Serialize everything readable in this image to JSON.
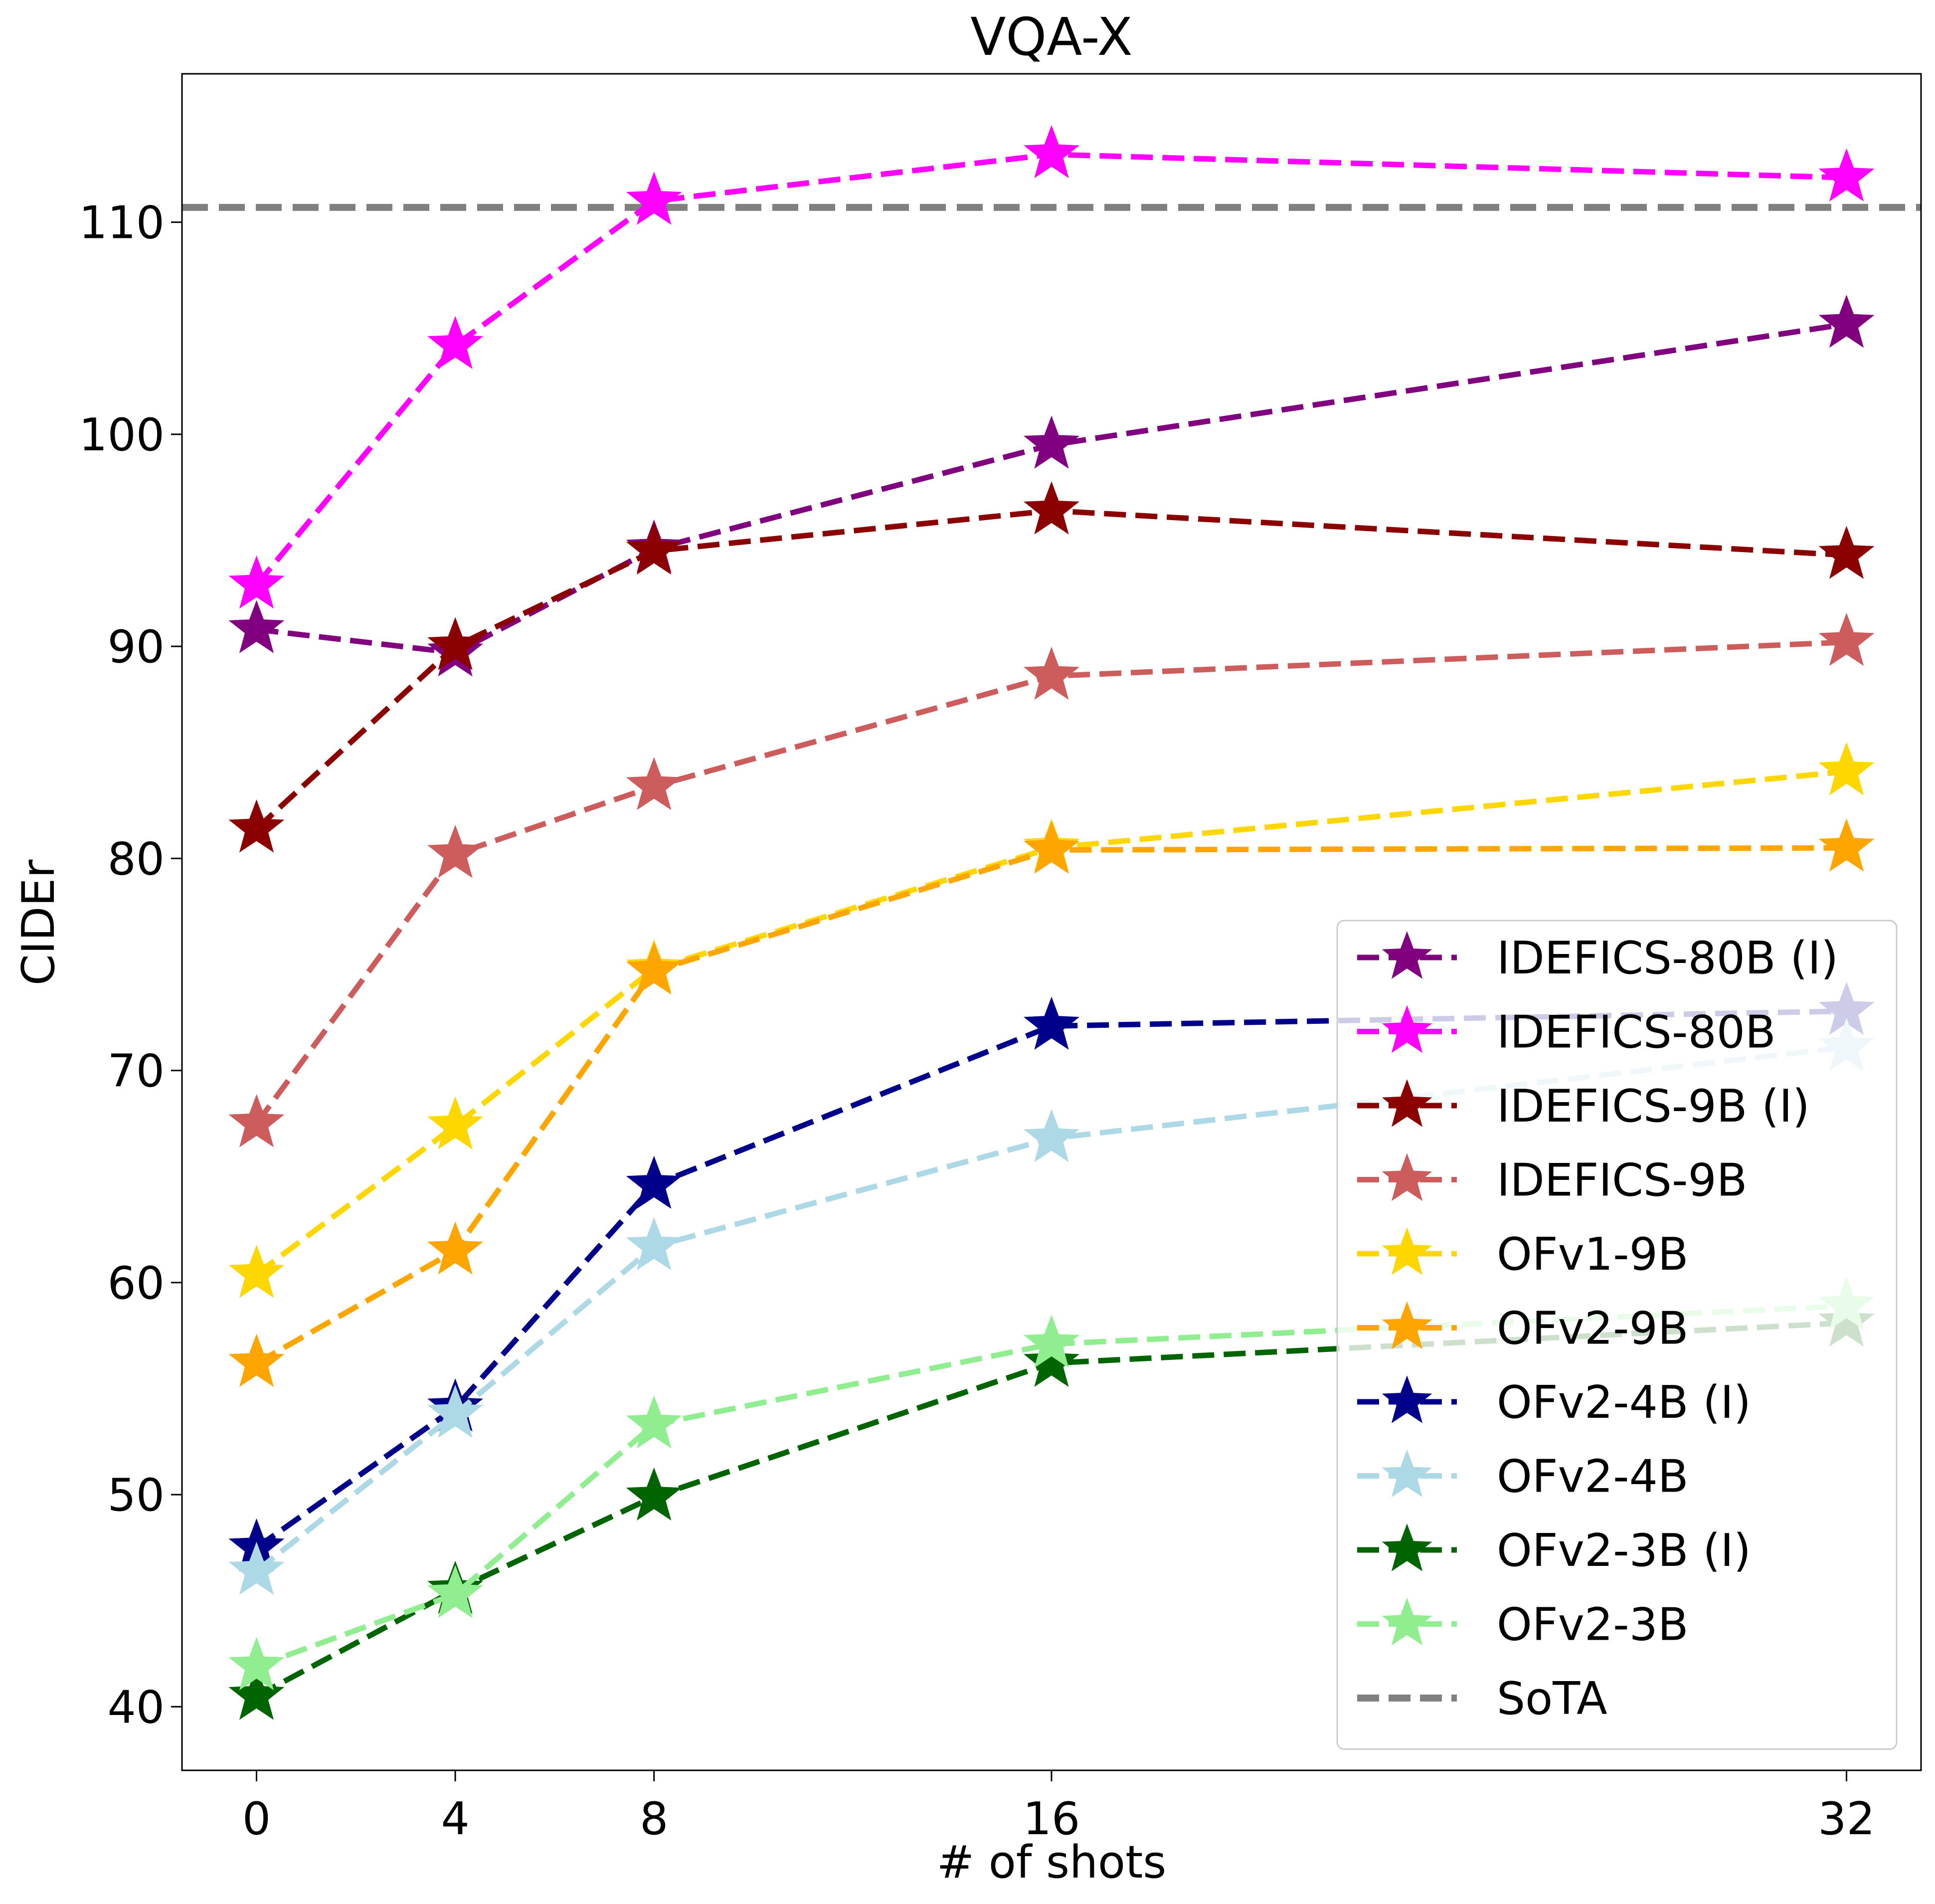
{
  "chart_data": {
    "type": "line",
    "title": "VQA-X",
    "xlabel": "# of shots",
    "ylabel": "CIDEr",
    "x": [
      0,
      4,
      8,
      16,
      32
    ],
    "xticks": [
      0,
      4,
      8,
      16,
      32
    ],
    "yticks": [
      40,
      50,
      60,
      70,
      80,
      90,
      100,
      110
    ],
    "xlim": [
      -1.5,
      33.5
    ],
    "ylim": [
      37,
      117
    ],
    "grid": false,
    "legend_position": "lower-right",
    "series": [
      {
        "name": "IDEFICS-80B (I)",
        "color": "#800080",
        "values": [
          90.8,
          89.7,
          94.6,
          99.5,
          105.2
        ]
      },
      {
        "name": "IDEFICS-80B",
        "color": "#ff00ff",
        "values": [
          92.9,
          104.2,
          111.0,
          113.2,
          112.1
        ]
      },
      {
        "name": "IDEFICS-9B (I)",
        "color": "#8b0000",
        "values": [
          81.4,
          90.0,
          94.5,
          96.4,
          94.3
        ]
      },
      {
        "name": "IDEFICS-9B",
        "color": "#cd5c5c",
        "values": [
          67.5,
          80.2,
          83.4,
          88.6,
          90.2
        ]
      },
      {
        "name": "OFv1-9B",
        "color": "#ffd700",
        "values": [
          60.4,
          67.4,
          74.8,
          80.5,
          84.1
        ]
      },
      {
        "name": "OFv2-9B",
        "color": "#ffa500",
        "values": [
          56.2,
          61.5,
          74.7,
          80.4,
          80.5
        ]
      },
      {
        "name": "OFv2-4B (I)",
        "color": "#00008b",
        "values": [
          47.5,
          54.1,
          64.6,
          72.1,
          72.8
        ]
      },
      {
        "name": "OFv2-4B",
        "color": "#add8e6",
        "values": [
          46.4,
          53.8,
          61.7,
          66.8,
          71.1
        ]
      },
      {
        "name": "OFv2-3B (I)",
        "color": "#006400",
        "values": [
          40.5,
          45.5,
          49.9,
          56.2,
          58.1
        ]
      },
      {
        "name": "OFv2-3B",
        "color": "#90ee90",
        "values": [
          41.9,
          45.3,
          53.3,
          57.1,
          58.9
        ]
      }
    ],
    "reference_lines": [
      {
        "name": "SoTA",
        "color": "#808080",
        "value": 110.7
      }
    ]
  }
}
